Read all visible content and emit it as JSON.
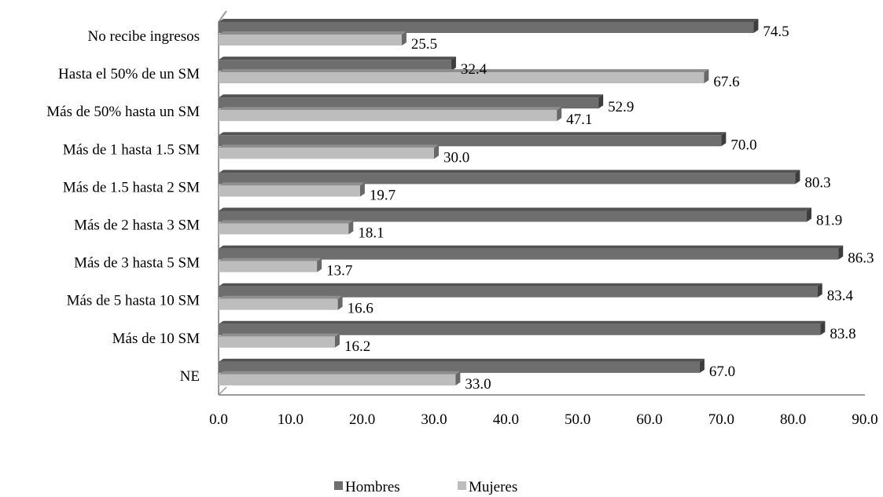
{
  "chart_data": {
    "type": "bar",
    "orientation": "horizontal",
    "three_d": true,
    "categories": [
      "No recibe ingresos",
      "Hasta el 50% de un SM",
      "Más de 50% hasta un SM",
      "Más de 1 hasta 1.5 SM",
      "Más de 1.5 hasta 2 SM",
      "Más de 2 hasta 3 SM",
      "Más de 3 hasta 5 SM",
      "Más de 5 hasta 10 SM",
      "Más de 10 SM",
      "NE"
    ],
    "series": [
      {
        "name": "Hombres",
        "color": "#6e6e6e",
        "values": [
          74.5,
          32.4,
          52.9,
          70.0,
          80.3,
          81.9,
          86.3,
          83.4,
          83.8,
          67.0
        ],
        "labels": [
          "74.5",
          "32.4",
          "52.9",
          "70.0",
          "80.3",
          "81.9",
          "86.3",
          "83.4",
          "83.8",
          "67.0"
        ]
      },
      {
        "name": "Mujeres",
        "color": "#bdbdbd",
        "values": [
          25.5,
          67.6,
          47.1,
          30.0,
          19.7,
          18.1,
          13.7,
          16.6,
          16.2,
          33.0
        ],
        "labels": [
          "25.5",
          "67.6",
          "47.1",
          "30.0",
          "19.7",
          "18.1",
          "13.7",
          "16.6",
          "16.2",
          "33.0"
        ]
      }
    ],
    "xlim": [
      0,
      90
    ],
    "xticks": [
      "0.0",
      "10.0",
      "20.0",
      "30.0",
      "40.0",
      "50.0",
      "60.0",
      "70.0",
      "80.0",
      "90.0"
    ],
    "title": "",
    "xlabel": "",
    "ylabel": "",
    "grid": false,
    "legend_position": "bottom"
  }
}
